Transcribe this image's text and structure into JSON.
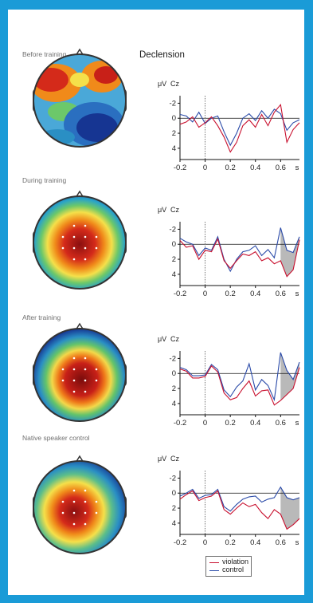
{
  "figure": {
    "title": "Declension",
    "conditions": [
      "Before training",
      "During training",
      "After training",
      "Native speaker control"
    ]
  },
  "chart_data": [
    {
      "type": "line",
      "condition": "Before training",
      "unit_label": "μV",
      "channel_label": "Cz",
      "xlabel": "s",
      "x_ticks": [
        "-0.2",
        "0",
        "0.2",
        "0.4",
        "0.6"
      ],
      "y_ticks": [
        "-2",
        "0",
        "2",
        "4"
      ],
      "xlim": [
        -0.2,
        0.75
      ],
      "ylim": [
        -3,
        5.5
      ],
      "y_inverted": true,
      "x": [
        -0.2,
        -0.15,
        -0.1,
        -0.05,
        0,
        0.05,
        0.1,
        0.15,
        0.2,
        0.25,
        0.3,
        0.35,
        0.4,
        0.45,
        0.5,
        0.55,
        0.6,
        0.65,
        0.7,
        0.75
      ],
      "series": [
        {
          "name": "violation",
          "color": "#c8102e",
          "values": [
            0.8,
            0.5,
            -0.2,
            1.2,
            0.6,
            -0.2,
            1.0,
            2.5,
            4.5,
            3.2,
            1.0,
            0.2,
            1.2,
            -0.5,
            1.0,
            -0.8,
            -1.8,
            3.2,
            1.5,
            0.6
          ]
        },
        {
          "name": "control",
          "color": "#2a4aa8",
          "values": [
            -0.5,
            -0.3,
            0.5,
            -0.8,
            0.7,
            0.0,
            -0.3,
            1.8,
            3.6,
            2.0,
            0.0,
            -0.6,
            0.3,
            -1.0,
            0.0,
            -1.2,
            -0.6,
            1.6,
            0.6,
            0.2
          ]
        }
      ]
    },
    {
      "type": "line",
      "condition": "During training",
      "unit_label": "μV",
      "channel_label": "Cz",
      "xlabel": "s",
      "x_ticks": [
        "-0.2",
        "0",
        "0.2",
        "0.4",
        "0.6"
      ],
      "y_ticks": [
        "-2",
        "0",
        "2",
        "4"
      ],
      "xlim": [
        -0.2,
        0.75
      ],
      "ylim": [
        -3,
        5.5
      ],
      "y_inverted": true,
      "shaded_interval": [
        0.57,
        0.75
      ],
      "x": [
        -0.2,
        -0.15,
        -0.1,
        -0.05,
        0,
        0.05,
        0.1,
        0.15,
        0.2,
        0.25,
        0.3,
        0.35,
        0.4,
        0.45,
        0.5,
        0.55,
        0.6,
        0.65,
        0.7,
        0.75
      ],
      "series": [
        {
          "name": "violation",
          "color": "#c8102e",
          "values": [
            -0.5,
            0.4,
            0.2,
            2.0,
            0.8,
            1.0,
            -0.7,
            2.2,
            3.2,
            2.2,
            1.3,
            1.5,
            1.0,
            2.2,
            1.8,
            2.6,
            2.2,
            4.3,
            3.4,
            -0.6
          ]
        },
        {
          "name": "control",
          "color": "#2a4aa8",
          "values": [
            -0.8,
            -0.3,
            0.0,
            1.5,
            0.5,
            0.8,
            -1.0,
            2.0,
            3.6,
            2.0,
            1.0,
            0.8,
            0.2,
            1.5,
            0.7,
            1.8,
            -2.2,
            0.8,
            1.1,
            -1.0
          ]
        }
      ]
    },
    {
      "type": "line",
      "condition": "After training",
      "unit_label": "μV",
      "channel_label": "Cz",
      "xlabel": "s",
      "x_ticks": [
        "-0.2",
        "0",
        "0.2",
        "0.4",
        "0.6"
      ],
      "y_ticks": [
        "-2",
        "0",
        "2",
        "4"
      ],
      "xlim": [
        -0.2,
        0.75
      ],
      "ylim": [
        -3,
        5.5
      ],
      "y_inverted": true,
      "shaded_interval": [
        0.6,
        0.75
      ],
      "x": [
        -0.2,
        -0.15,
        -0.1,
        -0.05,
        0,
        0.05,
        0.1,
        0.15,
        0.2,
        0.25,
        0.3,
        0.35,
        0.4,
        0.45,
        0.5,
        0.55,
        0.6,
        0.65,
        0.7,
        0.75
      ],
      "series": [
        {
          "name": "violation",
          "color": "#c8102e",
          "values": [
            -0.6,
            -0.3,
            0.6,
            0.6,
            0.4,
            -1.0,
            -0.2,
            2.6,
            3.5,
            3.2,
            2.0,
            1.0,
            3.0,
            2.3,
            2.2,
            4.2,
            3.6,
            2.8,
            2.0,
            -0.8
          ]
        },
        {
          "name": "control",
          "color": "#2a4aa8",
          "values": [
            -0.8,
            -0.5,
            0.3,
            0.3,
            0.2,
            -1.2,
            -0.5,
            2.2,
            3.1,
            1.8,
            1.0,
            -1.3,
            2.2,
            0.8,
            1.6,
            3.5,
            -2.8,
            -0.4,
            0.8,
            -1.5
          ]
        }
      ]
    },
    {
      "type": "line",
      "condition": "Native speaker control",
      "unit_label": "μV",
      "channel_label": "Cz",
      "xlabel": "s",
      "x_ticks": [
        "-0.2",
        "0",
        "0.2",
        "0.4",
        "0.6"
      ],
      "y_ticks": [
        "-2",
        "0",
        "2",
        "4"
      ],
      "xlim": [
        -0.2,
        0.75
      ],
      "ylim": [
        -3,
        5.5
      ],
      "y_inverted": true,
      "shaded_interval": [
        0.6,
        0.75
      ],
      "x": [
        -0.2,
        -0.15,
        -0.1,
        -0.05,
        0,
        0.05,
        0.1,
        0.15,
        0.2,
        0.25,
        0.3,
        0.35,
        0.4,
        0.45,
        0.5,
        0.55,
        0.6,
        0.65,
        0.7,
        0.75
      ],
      "series": [
        {
          "name": "violation",
          "color": "#c8102e",
          "values": [
            0.8,
            0.2,
            -0.3,
            1.0,
            0.6,
            0.4,
            -0.3,
            2.2,
            2.8,
            2.0,
            1.3,
            1.8,
            1.5,
            2.6,
            3.4,
            2.2,
            2.8,
            4.8,
            4.2,
            3.4
          ]
        },
        {
          "name": "control",
          "color": "#2a4aa8",
          "values": [
            0.4,
            0.0,
            -0.5,
            0.7,
            0.3,
            0.2,
            -0.5,
            1.8,
            2.4,
            1.5,
            0.8,
            0.5,
            0.4,
            1.2,
            0.8,
            0.6,
            -0.8,
            0.6,
            0.9,
            0.6
          ]
        }
      ]
    }
  ],
  "legend": [
    {
      "label": "violation",
      "color": "#c8102e"
    },
    {
      "label": "control",
      "color": "#2a4aa8"
    }
  ]
}
